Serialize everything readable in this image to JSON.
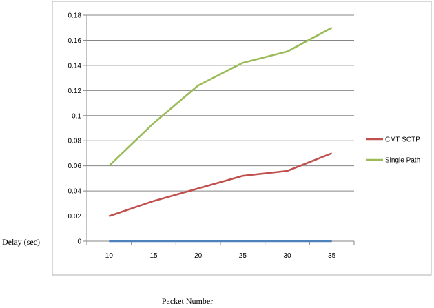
{
  "chart_data": {
    "type": "line",
    "categories": [
      "10",
      "15",
      "20",
      "25",
      "30",
      "35"
    ],
    "series": [
      {
        "name": "CMT SCTP",
        "color": "#c0504d",
        "values": [
          0.02,
          0.032,
          0.042,
          0.052,
          0.056,
          0.07
        ]
      },
      {
        "name": "Single Path",
        "color": "#9bbb59",
        "values": [
          0.06,
          0.094,
          0.124,
          0.142,
          0.151,
          0.17
        ]
      },
      {
        "name": "",
        "color": "#4f81bd",
        "values": [
          0,
          0,
          0,
          0,
          0,
          0
        ]
      }
    ],
    "yticks": [
      "0",
      "0.02",
      "0.04",
      "0.06",
      "0.08",
      "0.1",
      "0.12",
      "0.14",
      "0.16",
      "0.18"
    ],
    "ylim": [
      0,
      0.18
    ],
    "xlabel": "Packet Number",
    "ylabel": "Delay (sec)",
    "grid": true,
    "legend": "right"
  }
}
